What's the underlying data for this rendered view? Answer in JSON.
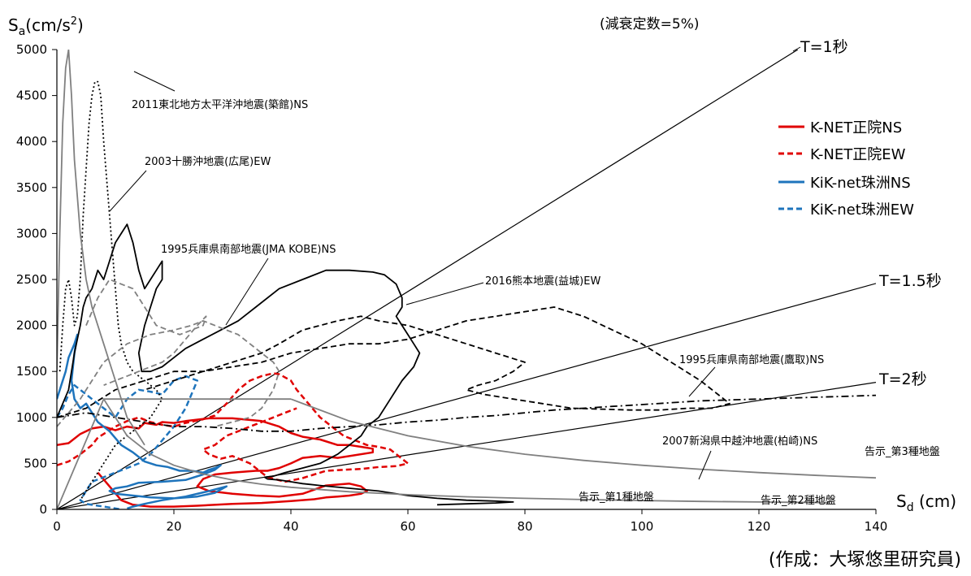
{
  "chart_data": {
    "type": "line",
    "title": "(減衰定数=5%)",
    "ylabel": {
      "main": "S",
      "sub": "a",
      "unit_pre": "(cm/s",
      "sup": "2",
      "unit_post": ")"
    },
    "xlabel": {
      "main": "S",
      "sub": "d",
      "unit": " (cm)"
    },
    "xlim": [
      0,
      140
    ],
    "ylim": [
      0,
      5000
    ],
    "x_ticks": [
      0,
      20,
      40,
      60,
      80,
      100,
      120,
      140
    ],
    "y_ticks": [
      0,
      500,
      1000,
      1500,
      2000,
      2500,
      3000,
      3500,
      4000,
      4500,
      5000
    ],
    "grid": false,
    "legend_position": "top-right",
    "series": [
      {
        "name": "K-NET正院NS",
        "color": "#e00000",
        "dash": "solid",
        "x": [
          0,
          2,
          4,
          6,
          8,
          10,
          12,
          14,
          15,
          17,
          18,
          20,
          22,
          26,
          30,
          35,
          38,
          40,
          42,
          45,
          48,
          50,
          52,
          54,
          54,
          48,
          45,
          42,
          40,
          38,
          36,
          34,
          30,
          27,
          25,
          24,
          26,
          30,
          34,
          38,
          42,
          46,
          50,
          52,
          53,
          52,
          50,
          48,
          46,
          44,
          40,
          35,
          30,
          24,
          20,
          16,
          13,
          11,
          9,
          7
        ],
        "y": [
          700,
          720,
          820,
          880,
          900,
          860,
          900,
          880,
          940,
          920,
          950,
          940,
          960,
          990,
          990,
          960,
          900,
          830,
          790,
          760,
          700,
          700,
          680,
          660,
          620,
          560,
          580,
          560,
          500,
          450,
          420,
          420,
          400,
          380,
          330,
          250,
          200,
          170,
          150,
          140,
          170,
          260,
          280,
          250,
          200,
          170,
          150,
          140,
          130,
          110,
          90,
          70,
          60,
          40,
          30,
          30,
          50,
          100,
          250,
          400
        ]
      },
      {
        "name": "K-NET正院EW",
        "color": "#e00000",
        "dash": "dashed",
        "x": [
          0,
          2,
          4,
          6,
          7,
          8,
          9,
          10,
          12,
          14,
          16,
          18,
          20,
          22,
          25,
          27,
          29,
          31,
          33,
          35,
          37,
          38,
          40,
          41,
          43,
          45,
          47,
          49,
          51,
          53,
          55,
          57,
          60,
          58,
          55,
          52,
          49,
          46,
          44,
          42,
          39,
          36,
          33,
          30,
          28,
          26,
          25,
          27,
          29,
          31,
          33,
          35,
          37,
          39,
          41
        ],
        "y": [
          480,
          520,
          600,
          700,
          780,
          820,
          860,
          900,
          960,
          1000,
          950,
          920,
          900,
          940,
          980,
          1020,
          1150,
          1300,
          1400,
          1450,
          1480,
          1470,
          1400,
          1300,
          1150,
          1000,
          900,
          800,
          750,
          700,
          680,
          650,
          500,
          470,
          460,
          440,
          430,
          420,
          380,
          340,
          300,
          350,
          500,
          580,
          550,
          600,
          650,
          700,
          800,
          850,
          900,
          950,
          1000,
          1050,
          1100
        ]
      },
      {
        "name": "KiK-net珠洲NS",
        "color": "#1e74bc",
        "dash": "solid",
        "x": [
          0,
          1,
          1.5,
          2,
          3,
          3.5,
          3,
          2.5,
          3,
          4,
          5,
          6,
          7,
          9,
          11,
          13,
          15,
          17,
          19,
          21,
          23,
          25,
          26,
          27,
          28,
          27,
          25,
          22,
          18,
          14,
          12,
          10,
          9,
          10,
          13,
          16,
          20,
          24,
          27,
          29,
          26,
          22,
          18,
          15,
          13,
          12
        ],
        "y": [
          1200,
          1400,
          1500,
          1650,
          1800,
          1900,
          1700,
          1400,
          1200,
          1100,
          1150,
          1050,
          950,
          850,
          700,
          620,
          520,
          480,
          460,
          420,
          420,
          400,
          430,
          450,
          480,
          430,
          380,
          320,
          300,
          290,
          250,
          230,
          200,
          170,
          150,
          130,
          120,
          140,
          180,
          250,
          200,
          140,
          100,
          60,
          30,
          10
        ]
      },
      {
        "name": "KiK-net珠洲EW",
        "color": "#1e74bc",
        "dash": "dashed",
        "x": [
          0,
          1,
          2,
          3,
          4,
          5,
          6,
          7,
          8,
          9,
          10,
          11,
          12,
          14,
          16,
          18,
          20,
          22,
          24,
          22,
          20,
          18,
          16,
          14,
          12,
          10,
          8,
          6,
          5,
          4,
          5,
          7,
          9,
          11
        ],
        "y": [
          1000,
          1100,
          1250,
          1350,
          1300,
          1250,
          1200,
          1150,
          1100,
          1050,
          1000,
          1100,
          1200,
          1300,
          1280,
          1250,
          1400,
          1450,
          1400,
          1100,
          900,
          750,
          600,
          500,
          450,
          400,
          350,
          300,
          200,
          100,
          60,
          40,
          20,
          0
        ]
      },
      {
        "name": "",
        "color": "#000000",
        "dash": "solid",
        "x": [
          0,
          2,
          3,
          4,
          4.5,
          5,
          6,
          7,
          8,
          9,
          10,
          11,
          12,
          13,
          14,
          15,
          16,
          17,
          18,
          18,
          17,
          15,
          14,
          14.5,
          16,
          18,
          20,
          22,
          25,
          28,
          31,
          34,
          38,
          42,
          46,
          50,
          54,
          56,
          58,
          59,
          59,
          58,
          59,
          60,
          61,
          62,
          61,
          59,
          57,
          55,
          53,
          52,
          50,
          48,
          45,
          42,
          39,
          37,
          35.5,
          36,
          38,
          40,
          42,
          45,
          50,
          55,
          60,
          65,
          70,
          75,
          78,
          75,
          70,
          65
        ],
        "y": [
          1000,
          1300,
          1700,
          2000,
          2200,
          2300,
          2400,
          2600,
          2500,
          2700,
          2900,
          3000,
          3100,
          2900,
          2600,
          2400,
          2500,
          2600,
          2700,
          2500,
          2400,
          2000,
          1700,
          1500,
          1500,
          1550,
          1650,
          1750,
          1850,
          1950,
          2050,
          2200,
          2400,
          2500,
          2600,
          2600,
          2580,
          2550,
          2450,
          2300,
          2200,
          2100,
          2000,
          1900,
          1800,
          1700,
          1550,
          1400,
          1200,
          1000,
          900,
          800,
          700,
          600,
          500,
          450,
          400,
          360,
          350,
          330,
          320,
          300,
          280,
          260,
          230,
          200,
          150,
          120,
          100,
          90,
          80,
          70,
          60,
          50
        ]
      },
      {
        "name": "",
        "color": "#000000",
        "dash": "dotted",
        "x": [
          0.5,
          1,
          1.5,
          2,
          2.5,
          3,
          3.5,
          4,
          4.5,
          5,
          5.5,
          6,
          6.5,
          7,
          7.5,
          8,
          8.5,
          9,
          9.5,
          10,
          10.5,
          11,
          12,
          13,
          14,
          15,
          16,
          17,
          18,
          16,
          14,
          12,
          10,
          8,
          6,
          4
        ],
        "y": [
          1500,
          2000,
          2400,
          2500,
          2300,
          2000,
          2100,
          2500,
          3200,
          3700,
          4200,
          4500,
          4650,
          4650,
          4500,
          4000,
          3600,
          3200,
          2800,
          2400,
          2000,
          1800,
          1600,
          1500,
          1450,
          1400,
          1350,
          1300,
          1200,
          1000,
          900,
          800,
          700,
          500,
          300,
          100
        ]
      },
      {
        "name": "",
        "color": "#000000",
        "dash": "dashed",
        "x": [
          0,
          5,
          10,
          15,
          20,
          25,
          30,
          35,
          40,
          45,
          50,
          55,
          60,
          65,
          70,
          75,
          80,
          85,
          90,
          95,
          100,
          105,
          110,
          113,
          115,
          112,
          108,
          103,
          98,
          93,
          88,
          83,
          78,
          73,
          70,
          72,
          75,
          78,
          80,
          75,
          70,
          65,
          60,
          55,
          52,
          48,
          45,
          42,
          38,
          35,
          30,
          25,
          20,
          15
        ],
        "y": [
          1000,
          1100,
          1300,
          1400,
          1500,
          1500,
          1550,
          1600,
          1700,
          1750,
          1800,
          1800,
          1850,
          1950,
          2050,
          2100,
          2150,
          2200,
          2100,
          1950,
          1800,
          1600,
          1400,
          1250,
          1150,
          1100,
          1100,
          1080,
          1080,
          1090,
          1100,
          1150,
          1200,
          1250,
          1300,
          1350,
          1400,
          1500,
          1600,
          1700,
          1800,
          1900,
          2000,
          2050,
          2100,
          2050,
          2000,
          1950,
          1800,
          1700,
          1600,
          1500,
          1400,
          1300
        ]
      },
      {
        "name": "",
        "color": "#000000",
        "dash": "dashdot",
        "x": [
          0,
          5,
          10,
          15,
          20,
          25,
          30,
          35,
          40,
          45,
          50,
          55,
          60,
          65,
          70,
          75,
          80,
          85,
          90,
          95,
          100,
          105,
          110,
          115,
          120,
          125,
          130,
          135,
          140
        ],
        "y": [
          1000,
          1050,
          1000,
          950,
          900,
          900,
          880,
          850,
          850,
          880,
          900,
          920,
          950,
          970,
          1000,
          1020,
          1050,
          1080,
          1100,
          1120,
          1140,
          1160,
          1180,
          1190,
          1200,
          1210,
          1220,
          1230,
          1240
        ]
      },
      {
        "name": "",
        "color": "#808080",
        "dash": "solid",
        "x": [
          0,
          0.5,
          1,
          1.5,
          2,
          2.5,
          3,
          4,
          5,
          6,
          7,
          8,
          9,
          10,
          11,
          12,
          13,
          14,
          15
        ],
        "y": [
          1500,
          3000,
          4200,
          4800,
          5000,
          4500,
          3800,
          3000,
          2500,
          2200,
          2000,
          1800,
          1600,
          1400,
          1200,
          1000,
          900,
          800,
          700
        ]
      },
      {
        "name": "",
        "color": "#808080",
        "dash": "dashed",
        "x": [
          0,
          4,
          8,
          12,
          16,
          20,
          23,
          25,
          27,
          29,
          31,
          33,
          35,
          37,
          38,
          37,
          35,
          33,
          30,
          27
        ],
        "y": [
          900,
          1200,
          1600,
          1800,
          1900,
          1950,
          2000,
          2050,
          2000,
          1950,
          1900,
          1800,
          1700,
          1600,
          1500,
          1300,
          1100,
          1000,
          950,
          900
        ]
      },
      {
        "name": "",
        "color": "#808080",
        "dash": "dashed",
        "x": [
          5,
          7,
          9,
          11,
          13,
          15,
          17,
          19,
          21,
          23,
          25,
          25.5,
          24,
          22,
          20,
          18,
          16,
          14,
          12,
          10,
          8
        ],
        "y": [
          2000,
          2300,
          2500,
          2450,
          2400,
          2200,
          2000,
          1950,
          1900,
          1950,
          2000,
          2100,
          2000,
          1850,
          1700,
          1600,
          1550,
          1500,
          1450,
          1400,
          1350
        ]
      },
      {
        "name": "",
        "color": "#808080",
        "dash": "solid",
        "x": [
          0,
          8,
          10,
          20,
          30,
          40
        ],
        "y": [
          0,
          1200,
          1200,
          1200,
          1200,
          1200
        ]
      },
      {
        "name": "",
        "color": "#808080",
        "dash": "solid",
        "x": [
          40,
          50,
          60,
          70,
          80,
          90,
          100,
          110,
          120,
          130,
          140
        ],
        "y": [
          1200,
          960,
          800,
          686,
          600,
          533,
          480,
          436,
          400,
          369,
          343
        ]
      },
      {
        "name": "",
        "color": "#808080",
        "dash": "solid",
        "x": [
          8,
          12,
          16,
          20,
          25,
          30,
          35,
          40,
          50,
          60,
          70,
          80,
          90,
          100,
          110,
          120,
          132
        ],
        "y": [
          1200,
          800,
          600,
          480,
          384,
          320,
          274,
          240,
          192,
          160,
          137,
          120,
          107,
          96,
          87,
          80,
          73
        ]
      }
    ],
    "period_lines": [
      {
        "label": "T=1秒",
        "T": 1
      },
      {
        "label": "T=1.5秒",
        "T": 1.5
      },
      {
        "label": "T=2秒",
        "T": 2
      }
    ],
    "annotations": [
      {
        "text": "2011東北地方太平洋沖地震(築館)NS"
      },
      {
        "text": "2003十勝沖地震(広尾)EW"
      },
      {
        "text": "1995兵庫県南部地震(JMA KOBE)NS"
      },
      {
        "text": "2016熊本地震(益城)EW"
      },
      {
        "text": "1995兵庫県南部地震(鷹取)NS"
      },
      {
        "text": "2007新潟県中越沖地震(柏崎)NS"
      },
      {
        "text": "告示_第3種地盤"
      },
      {
        "text": "告示_第1種地盤"
      },
      {
        "text": "告示_第2種地盤"
      }
    ]
  },
  "credit": "(作成：大塚悠里研究員)"
}
